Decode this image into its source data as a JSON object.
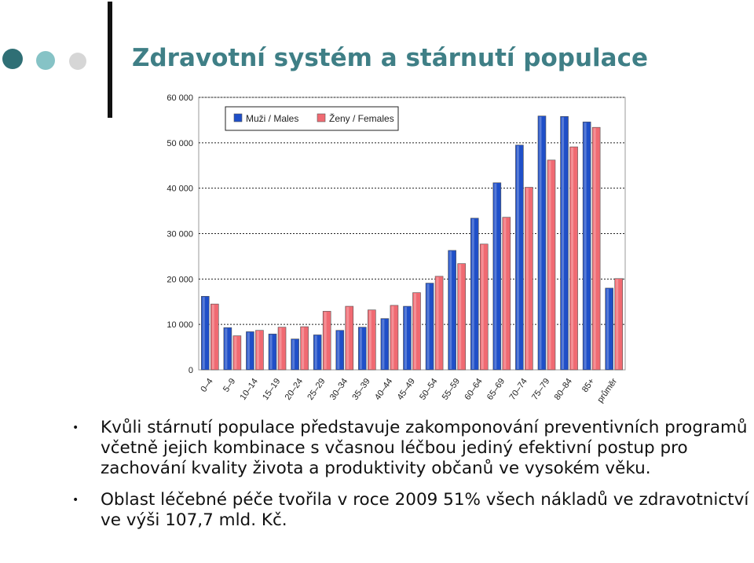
{
  "page": {
    "title": "Zdravotní systém a stárnutí populace",
    "bullets": [
      "Kvůli stárnutí populace představuje zakomponování preventivních programů včetně jejich kombinace s včasnou léčbou jediný efektivní postup pro zachování kvality života a produktivity občanů ve vysokém věku.",
      "Oblast léčebné péče tvořila v roce 2009 51% všech nákladů ve zdravotnictví ve výši 107,7 mld. Kč."
    ],
    "bullet_marker": "•",
    "colors": {
      "title": "#3f7f86",
      "dots": [
        "#2f6f75",
        "#86c3c6",
        "#d6d6d6"
      ],
      "males": "#1f4fc8",
      "females": "#f06a72"
    }
  },
  "chart_data": {
    "type": "bar",
    "categories": [
      "0–4",
      "5–9",
      "10–14",
      "15–19",
      "20–24",
      "25–29",
      "30–34",
      "35–39",
      "40–44",
      "45–49",
      "50–54",
      "55–59",
      "60–64",
      "65–69",
      "70–74",
      "75–79",
      "80–84",
      "85+",
      "průměr"
    ],
    "series": [
      {
        "name": "Muži / Males",
        "values": [
          16200,
          9300,
          8400,
          7900,
          6800,
          7700,
          8700,
          9400,
          11300,
          14000,
          19100,
          26300,
          33400,
          41200,
          49500,
          55900,
          55800,
          54600,
          18000
        ]
      },
      {
        "name": "Ženy / Females",
        "values": [
          14500,
          7500,
          8700,
          9400,
          9500,
          12900,
          14000,
          13200,
          14200,
          17000,
          20600,
          23400,
          27700,
          33600,
          40200,
          46200,
          49100,
          53400,
          20100
        ]
      }
    ],
    "ylim": [
      0,
      60000
    ],
    "yticks": [
      0,
      10000,
      20000,
      30000,
      40000,
      50000,
      60000
    ],
    "ytick_labels": [
      "0",
      "10 000",
      "20 000",
      "30 000",
      "40 000",
      "50 000",
      "60 000"
    ],
    "grid": true,
    "legend_position": "top-left"
  }
}
